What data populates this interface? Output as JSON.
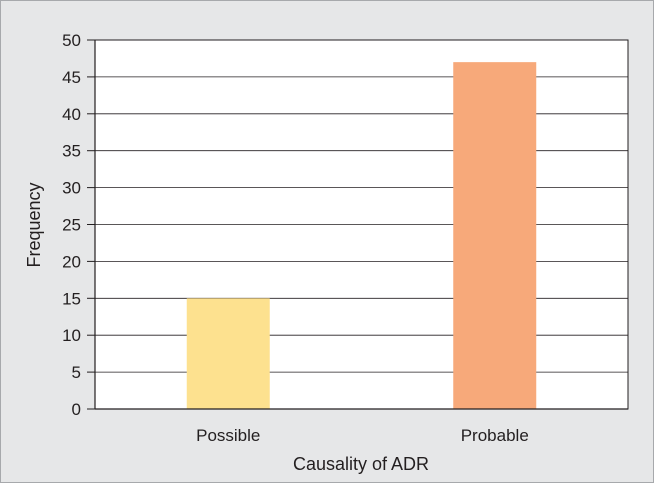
{
  "chart_data": {
    "type": "bar",
    "title": "",
    "xlabel": "Causality of ADR",
    "ylabel": "Frequency",
    "categories": [
      "Possible",
      "Probable"
    ],
    "values": [
      15,
      47
    ],
    "colors": [
      "#fde18f",
      "#f7a97a"
    ],
    "ylim": [
      0,
      50
    ],
    "yticks": [
      "0",
      "5",
      "10",
      "15",
      "20",
      "25",
      "30",
      "35",
      "40",
      "45",
      "50"
    ],
    "grid": true,
    "legend": "none"
  }
}
